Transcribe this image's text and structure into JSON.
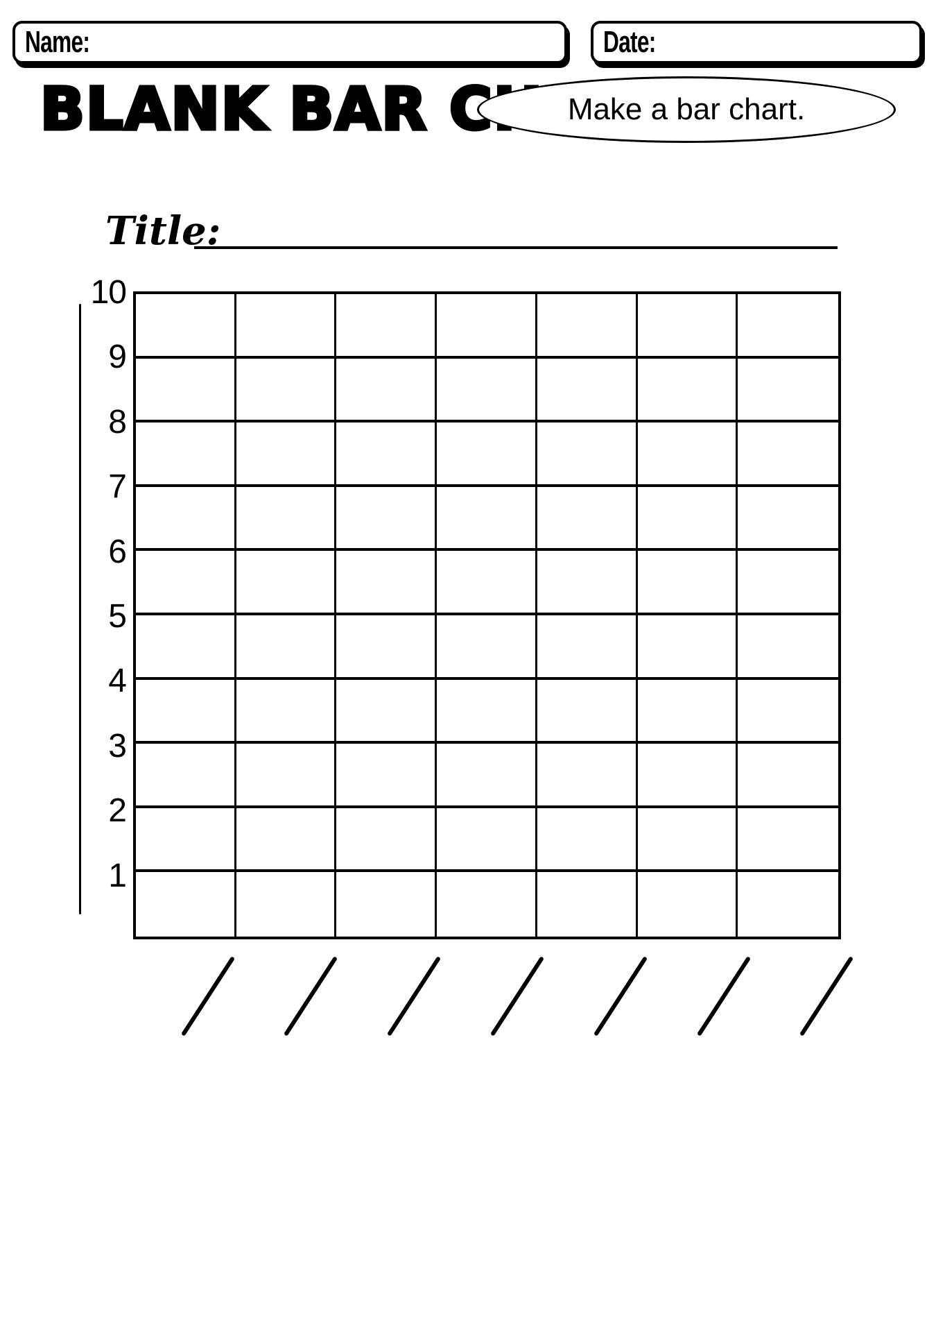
{
  "page": {
    "background_color": "#ffffff",
    "ink_color": "#000000"
  },
  "header": {
    "name_label": "Name:",
    "date_label": "Date:"
  },
  "title": "BLANK BAR CHART",
  "instruction": "Make a bar chart.",
  "chart": {
    "title_label": "Title:",
    "title_value": "",
    "y_axis_labels": [
      "10",
      "9",
      "8",
      "7",
      "6",
      "5",
      "4",
      "3",
      "2",
      "1"
    ],
    "grid_rows": 10,
    "grid_columns": 7,
    "category_slots": 7
  },
  "chart_data": {
    "type": "bar",
    "title": "",
    "categories": [],
    "values": [],
    "xlabel": "",
    "ylabel": "",
    "ylim": [
      0,
      10
    ],
    "y_ticks": [
      1,
      2,
      3,
      4,
      5,
      6,
      7,
      8,
      9,
      10
    ],
    "grid": "on",
    "legend": "none"
  }
}
